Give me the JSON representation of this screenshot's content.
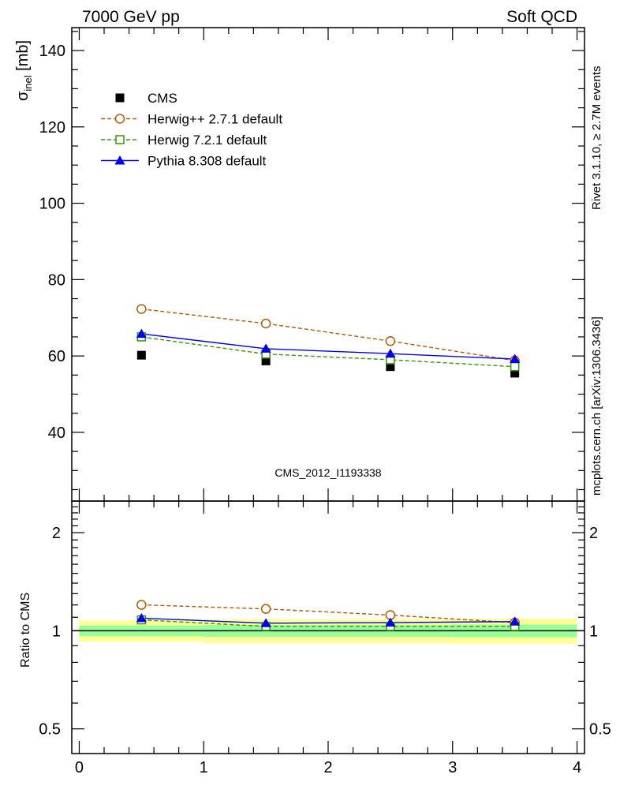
{
  "header": {
    "left_label": "7000 GeV pp",
    "right_label": "Soft QCD"
  },
  "side_labels": {
    "rivet": "Rivet 3.1.10, ≥ 2.7M events",
    "mcplots": "mcplots.cern.ch [arXiv:1306.3436]"
  },
  "watermark": "CMS_2012_I1193338",
  "colors": {
    "cms": "#000000",
    "herwigpp": "#b35900",
    "herwig7": "#339900",
    "pythia": "#0000ee",
    "band_yellow": "#ffff99",
    "band_green": "#99ff99"
  },
  "chart_data": [
    {
      "type": "scatter",
      "panel": "main",
      "ylabel": "σ",
      "ylabel_sub": "inel",
      "ylabel_unit": " [mb]",
      "xlim": [
        -0.06,
        4.06
      ],
      "ylim": [
        22,
        146
      ],
      "yticks": [
        40,
        60,
        80,
        100,
        120,
        140
      ],
      "ytick_labels": [
        "40",
        "60",
        "80",
        "100",
        "120",
        "140"
      ],
      "x": [
        0.5,
        1.5,
        2.5,
        3.5
      ],
      "series": [
        {
          "name": "CMS",
          "key": "cms",
          "marker": "square-filled",
          "line": "none",
          "values": [
            60.2,
            58.7,
            57.2,
            55.5
          ]
        },
        {
          "name": "Herwig++ 2.7.1 default",
          "key": "herwigpp",
          "marker": "circle-open",
          "line": "dashed",
          "values": [
            72.3,
            68.5,
            63.9,
            58.8
          ]
        },
        {
          "name": "Herwig 7.2.1 default",
          "key": "herwig7",
          "marker": "square-open",
          "line": "dashed",
          "values": [
            65.0,
            60.5,
            59.0,
            57.2
          ]
        },
        {
          "name": "Pythia 8.308 default",
          "key": "pythia",
          "marker": "triangle-filled",
          "line": "solid",
          "values": [
            65.8,
            61.9,
            60.6,
            59.2
          ]
        }
      ]
    },
    {
      "type": "scatter",
      "panel": "ratio",
      "ylabel": "Ratio to CMS",
      "ylim": [
        0.42,
        2.5
      ],
      "yscale": "log",
      "yticks": [
        0.5,
        1,
        2
      ],
      "ytick_labels": [
        "0.5",
        "1",
        "2"
      ],
      "xlim": [
        -0.06,
        4.06
      ],
      "xticks": [
        0,
        1,
        2,
        3,
        4
      ],
      "xtick_labels": [
        "0",
        "1",
        "2",
        "3",
        "4"
      ],
      "x": [
        0.5,
        1.5,
        2.5,
        3.5
      ],
      "bins": [
        [
          0,
          1
        ],
        [
          1,
          2
        ],
        [
          2,
          3
        ],
        [
          3,
          4
        ]
      ],
      "band_yellow": [
        [
          0.925,
          1.075
        ],
        [
          0.915,
          1.085
        ],
        [
          0.915,
          1.085
        ],
        [
          0.912,
          1.09
        ]
      ],
      "band_green": [
        [
          0.962,
          1.038
        ],
        [
          0.958,
          1.042
        ],
        [
          0.958,
          1.042
        ],
        [
          0.955,
          1.045
        ]
      ],
      "series": [
        {
          "name": "Herwig++ 2.7.1 default",
          "key": "herwigpp",
          "marker": "circle-open",
          "line": "dashed",
          "values": [
            1.201,
            1.167,
            1.117,
            1.059
          ]
        },
        {
          "name": "Herwig 7.2.1 default",
          "key": "herwig7",
          "marker": "square-open",
          "line": "dashed",
          "values": [
            1.08,
            1.031,
            1.031,
            1.031
          ]
        },
        {
          "name": "Pythia 8.308 default",
          "key": "pythia",
          "marker": "triangle-filled",
          "line": "solid",
          "values": [
            1.093,
            1.055,
            1.059,
            1.067
          ]
        }
      ]
    }
  ]
}
